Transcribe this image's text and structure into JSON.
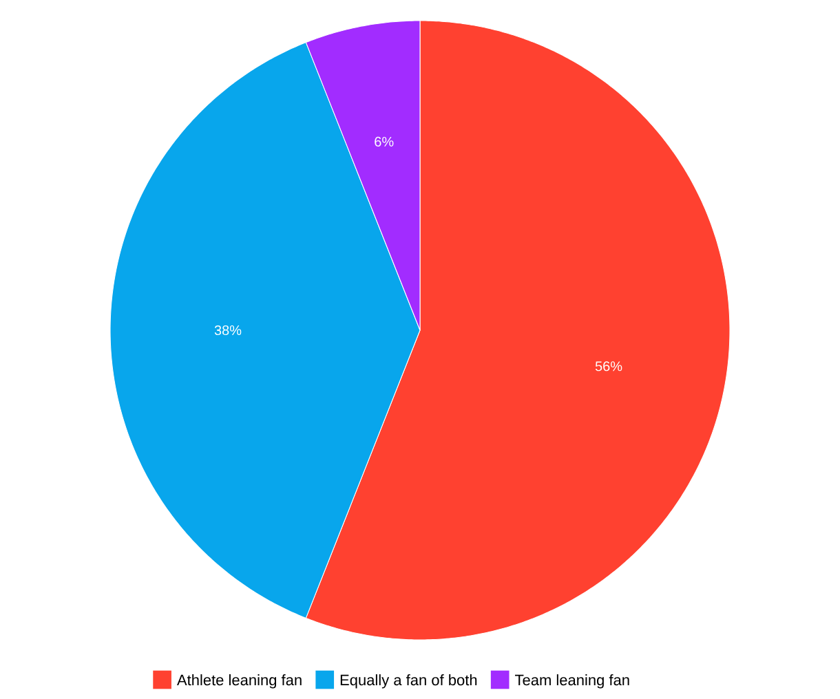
{
  "chart_data": {
    "type": "pie",
    "categories": [
      "Athlete leaning fan",
      "Equally a fan of both",
      "Team leaning fan"
    ],
    "values": [
      56,
      38,
      6
    ],
    "colors": [
      "#ff4130",
      "#08a6ec",
      "#a22cff"
    ],
    "value_labels": [
      "56%",
      "38%",
      "6%"
    ],
    "legend": "bottom"
  }
}
